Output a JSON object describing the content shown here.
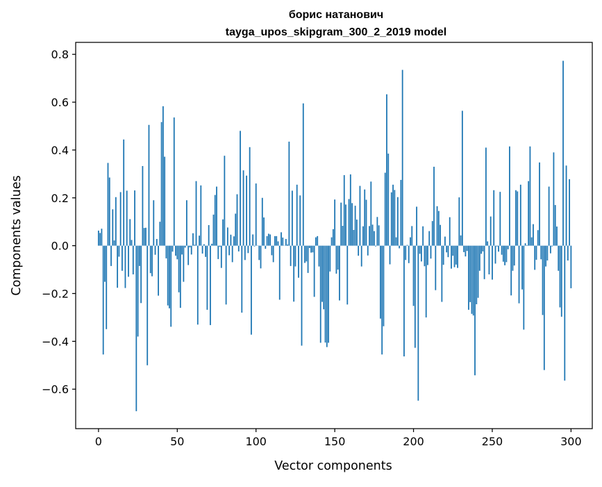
{
  "chart_data": {
    "type": "bar",
    "title": "борис натанович",
    "subtitle": "tayga_upos_skipgram_300_2_2019 model",
    "xlabel": "Vector components",
    "ylabel": "Components values",
    "xlim": [
      -14.5,
      313.5
    ],
    "ylim": [
      -0.765,
      0.85
    ],
    "xticks": [
      0,
      50,
      100,
      150,
      200,
      250,
      300
    ],
    "yticks": [
      -0.6,
      -0.4,
      -0.2,
      0.0,
      0.2,
      0.4,
      0.6,
      0.8
    ],
    "ytick_labels": [
      "−0.6",
      "−0.4",
      "−0.2",
      "0.0",
      "0.2",
      "0.4",
      "0.6",
      "0.8"
    ],
    "grid": false,
    "bar_color": "#1f77b4",
    "x": "0..299",
    "values": [
      0.063,
      0.053,
      0.071,
      -0.455,
      -0.151,
      -0.349,
      0.346,
      0.285,
      -0.085,
      0.152,
      0.022,
      0.203,
      -0.176,
      -0.046,
      0.224,
      -0.105,
      0.444,
      -0.177,
      0.23,
      -0.13,
      0.111,
      0.024,
      -0.12,
      0.231,
      -0.692,
      -0.38,
      -0.085,
      -0.24,
      0.333,
      0.074,
      0.075,
      -0.5,
      0.505,
      -0.115,
      -0.128,
      0.19,
      -0.038,
      0.028,
      -0.209,
      0.1,
      0.517,
      0.583,
      0.372,
      -0.053,
      -0.25,
      -0.262,
      -0.339,
      -0.025,
      0.536,
      -0.042,
      -0.057,
      -0.195,
      -0.26,
      -0.037,
      -0.151,
      -0.008,
      0.19,
      -0.081,
      -0.007,
      -0.037,
      0.052,
      0.004,
      0.27,
      -0.33,
      0.042,
      0.252,
      -0.033,
      0.006,
      -0.047,
      -0.268,
      0.086,
      -0.332,
      0.008,
      0.13,
      0.212,
      0.247,
      -0.056,
      -0.005,
      -0.093,
      0.11,
      0.376,
      -0.246,
      0.076,
      -0.04,
      0.046,
      -0.069,
      0.039,
      0.134,
      0.215,
      -0.024,
      0.48,
      -0.28,
      0.315,
      -0.06,
      0.293,
      -0.031,
      0.412,
      -0.372,
      0.047,
      -0.003,
      0.26,
      0.001,
      -0.06,
      -0.095,
      0.2,
      0.118,
      -0.013,
      0.04,
      0.05,
      0.047,
      -0.04,
      -0.069,
      0.04,
      0.04,
      0.018,
      -0.226,
      0.056,
      0.034,
      -0.001,
      0.028,
      0.005,
      0.435,
      -0.085,
      0.23,
      -0.234,
      -0.087,
      0.255,
      -0.134,
      0.21,
      -0.418,
      0.595,
      -0.072,
      -0.066,
      -0.114,
      -0.01,
      -0.029,
      -0.028,
      -0.214,
      0.035,
      0.04,
      -0.087,
      -0.406,
      -0.235,
      -0.266,
      -0.405,
      -0.424,
      -0.406,
      -0.108,
      0.035,
      0.069,
      0.193,
      -0.117,
      -0.1,
      -0.229,
      0.18,
      0.083,
      0.295,
      0.172,
      -0.246,
      0.195,
      0.298,
      0.178,
      0.066,
      0.167,
      0.109,
      -0.042,
      0.25,
      -0.087,
      0.081,
      0.235,
      0.192,
      -0.041,
      0.082,
      0.268,
      0.088,
      0.061,
      -0.003,
      0.12,
      0.085,
      -0.305,
      -0.455,
      -0.337,
      0.305,
      0.633,
      0.385,
      -0.078,
      0.223,
      0.255,
      0.233,
      0.035,
      0.203,
      -0.011,
      0.275,
      0.735,
      -0.463,
      -0.06,
      0.003,
      -0.073,
      0.035,
      0.082,
      -0.252,
      -0.427,
      0.163,
      -0.648,
      -0.034,
      -0.066,
      0.081,
      -0.086,
      -0.3,
      -0.081,
      0.061,
      -0.054,
      0.103,
      0.33,
      -0.186,
      0.165,
      0.145,
      0.087,
      -0.235,
      -0.08,
      0.038,
      -0.028,
      -0.048,
      0.119,
      -0.096,
      -0.042,
      -0.09,
      -0.079,
      -0.093,
      0.202,
      0.043,
      0.564,
      -0.027,
      -0.045,
      -0.022,
      -0.268,
      -0.236,
      -0.285,
      -0.292,
      -0.542,
      -0.245,
      -0.218,
      -0.105,
      -0.034,
      -0.024,
      -0.14,
      0.41,
      0.018,
      -0.12,
      0.122,
      -0.142,
      0.232,
      -0.075,
      -0.003,
      -0.025,
      0.225,
      -0.038,
      -0.067,
      -0.082,
      -0.069,
      -0.015,
      0.415,
      -0.208,
      -0.105,
      -0.083,
      0.232,
      0.227,
      -0.241,
      0.255,
      -0.183,
      -0.351,
      0.01,
      0.002,
      0.27,
      0.415,
      0.035,
      0.09,
      -0.101,
      -0.059,
      0.065,
      0.348,
      -0.057,
      -0.29,
      -0.52,
      -0.087,
      -0.062,
      0.247,
      -0.032,
      -0.003,
      0.39,
      0.17,
      0.08,
      -0.105,
      -0.258,
      -0.297,
      0.773,
      -0.564,
      0.335,
      -0.062,
      0.278,
      -0.178
    ]
  }
}
